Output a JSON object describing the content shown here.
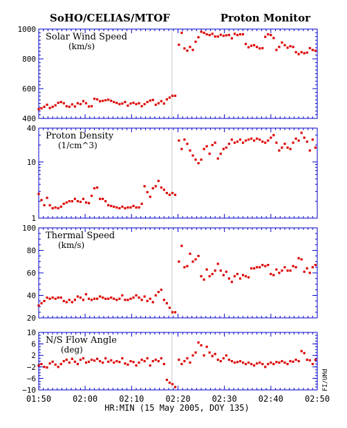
{
  "header": {
    "left_title": "SoHO/CELIAS/MTOF",
    "right_title": "Proton Monitor"
  },
  "credit": "FI/UMd",
  "x_axis": {
    "label": "HR:MIN (15 May 2005, DOY 135)",
    "tick_labels": [
      "01:50",
      "02:00",
      "02:10",
      "02:20",
      "02:30",
      "02:40",
      "02:50"
    ]
  },
  "colors": {
    "axis": "#0000cc",
    "points": "#dd0000",
    "gap_line": "#c8c8c8"
  },
  "chart_data": [
    {
      "type": "scatter",
      "title": "Solar Wind Speed",
      "ylabel": "(km/s)",
      "scale": "linear",
      "xlim": [
        0,
        60
      ],
      "ylim": [
        400,
        1000
      ],
      "yticks": [
        400,
        600,
        800,
        1000
      ],
      "x": [
        0,
        0.6,
        1.2,
        1.8,
        2.4,
        3.0,
        3.6,
        4.2,
        4.8,
        5.4,
        6.0,
        6.6,
        7.2,
        7.8,
        8.4,
        9.0,
        9.6,
        10.2,
        10.8,
        11.4,
        12.0,
        12.6,
        13.2,
        13.8,
        14.4,
        15.0,
        15.6,
        16.2,
        16.8,
        17.4,
        18.0,
        18.6,
        19.2,
        19.8,
        20.4,
        21.0,
        21.6,
        22.2,
        22.8,
        23.4,
        24.0,
        24.6,
        25.2,
        25.8,
        26.4,
        27.0,
        27.6,
        28.2,
        28.8,
        29.4,
        30.2,
        30.8,
        31.4,
        32.0,
        32.6,
        33.2,
        33.8,
        34.4,
        35.0,
        35.6,
        36.2,
        36.8,
        37.4,
        38.0,
        38.6,
        39.2,
        39.8,
        40.4,
        41.0,
        41.6,
        42.2,
        42.8,
        43.4,
        44.0,
        44.6,
        45.2,
        45.8,
        46.4,
        47.0,
        47.6,
        48.2,
        48.8,
        49.4,
        50.0,
        50.6,
        51.2,
        51.8,
        52.4,
        53.0,
        53.6,
        54.2,
        54.8,
        55.4,
        56.0,
        56.6,
        57.2,
        57.8,
        58.4,
        59.0,
        59.6
      ],
      "y": [
        462,
        468,
        478,
        492,
        470,
        478,
        488,
        505,
        510,
        502,
        482,
        478,
        494,
        480,
        502,
        496,
        516,
        502,
        480,
        482,
        532,
        528,
        516,
        518,
        522,
        526,
        518,
        510,
        504,
        496,
        500,
        510,
        486,
        500,
        505,
        496,
        502,
        482,
        496,
        510,
        520,
        524,
        492,
        502,
        516,
        500,
        528,
        540,
        552,
        552,
        895,
        975,
        870,
        855,
        880,
        860,
        915,
        945,
        982,
        975,
        965,
        960,
        968,
        950,
        950,
        962,
        955,
        958,
        960,
        938,
        968,
        960,
        965,
        965,
        900,
        878,
        888,
        892,
        880,
        870,
        872,
        948,
        965,
        960,
        940,
        860,
        880,
        910,
        892,
        875,
        885,
        880,
        845,
        832,
        845,
        838,
        842,
        872,
        860,
        855
      ]
    },
    {
      "type": "scatter",
      "title": "Proton Density",
      "ylabel": "(1/cm^3)",
      "scale": "log",
      "xlim": [
        0,
        60
      ],
      "ylim": [
        1,
        40
      ],
      "yticks": [
        1,
        10,
        40
      ],
      "x": [
        0,
        0.6,
        1.2,
        1.8,
        2.4,
        3.0,
        3.6,
        4.2,
        4.8,
        5.4,
        6.0,
        6.6,
        7.2,
        7.8,
        8.4,
        9.0,
        9.6,
        10.2,
        10.8,
        11.4,
        12.0,
        12.6,
        13.2,
        13.8,
        14.4,
        15.0,
        15.6,
        16.2,
        16.8,
        17.4,
        18.0,
        18.6,
        19.2,
        19.8,
        20.4,
        21.0,
        21.6,
        22.2,
        22.8,
        23.4,
        24.0,
        24.6,
        25.2,
        25.8,
        26.4,
        27.0,
        27.6,
        28.2,
        28.8,
        29.4,
        30.2,
        30.8,
        31.4,
        32.0,
        32.6,
        33.2,
        33.8,
        34.4,
        35.0,
        35.6,
        36.2,
        36.8,
        37.4,
        38.0,
        38.6,
        39.2,
        39.8,
        40.4,
        41.0,
        41.6,
        42.2,
        42.8,
        43.4,
        44.0,
        44.6,
        45.2,
        45.8,
        46.4,
        47.0,
        47.6,
        48.2,
        48.8,
        49.4,
        50.0,
        50.6,
        51.2,
        51.8,
        52.4,
        53.0,
        53.6,
        54.2,
        54.8,
        55.4,
        56.0,
        56.6,
        57.2,
        57.8,
        58.4,
        59.0,
        59.6
      ],
      "y": [
        2.7,
        2.1,
        1.7,
        2.3,
        1.7,
        1.5,
        1.55,
        1.5,
        1.6,
        1.8,
        1.9,
        2.0,
        2.0,
        2.2,
        2.0,
        1.95,
        2.2,
        1.9,
        1.85,
        2.5,
        3.4,
        3.5,
        2.2,
        2.2,
        2.0,
        1.7,
        1.65,
        1.6,
        1.55,
        1.5,
        1.6,
        1.5,
        1.55,
        1.55,
        1.65,
        1.55,
        1.55,
        1.8,
        3.7,
        2.9,
        2.4,
        3.4,
        3.7,
        4.6,
        3.5,
        3.2,
        2.8,
        2.6,
        2.8,
        2.6,
        24,
        17,
        25,
        21,
        16,
        13,
        11,
        9.5,
        11,
        17,
        19,
        14,
        20,
        22,
        11.5,
        14,
        17,
        18,
        21,
        25,
        22,
        23,
        25,
        22,
        24,
        25,
        26,
        24,
        26,
        25,
        23,
        22,
        24,
        27,
        30,
        22,
        16,
        18,
        21,
        18,
        17,
        22,
        26,
        24,
        33,
        27,
        23,
        16,
        25,
        18
      ]
    },
    {
      "type": "scatter",
      "title": "Thermal Speed",
      "ylabel": "(km/s)",
      "scale": "linear",
      "xlim": [
        0,
        60
      ],
      "ylim": [
        20,
        100
      ],
      "yticks": [
        20,
        40,
        60,
        80,
        100
      ],
      "x": [
        0,
        0.6,
        1.2,
        1.8,
        2.4,
        3.0,
        3.6,
        4.2,
        4.8,
        5.4,
        6.0,
        6.6,
        7.2,
        7.8,
        8.4,
        9.0,
        9.6,
        10.2,
        10.8,
        11.4,
        12.0,
        12.6,
        13.2,
        13.8,
        14.4,
        15.0,
        15.6,
        16.2,
        16.8,
        17.4,
        18.0,
        18.6,
        19.2,
        19.8,
        20.4,
        21.0,
        21.6,
        22.2,
        22.8,
        23.4,
        24.0,
        24.6,
        25.2,
        25.8,
        26.4,
        27.0,
        27.6,
        28.2,
        28.8,
        29.4,
        30.2,
        30.8,
        31.4,
        32.0,
        32.6,
        33.2,
        33.8,
        34.4,
        35.0,
        35.6,
        36.2,
        36.8,
        37.4,
        38.0,
        38.6,
        39.2,
        39.8,
        40.4,
        41.0,
        41.6,
        42.2,
        42.8,
        43.4,
        44.0,
        44.6,
        45.2,
        45.8,
        46.4,
        47.0,
        47.6,
        48.2,
        48.8,
        49.4,
        50.0,
        50.6,
        51.2,
        51.8,
        52.4,
        53.0,
        53.6,
        54.2,
        54.8,
        55.4,
        56.0,
        56.6,
        57.2,
        57.8,
        58.4,
        59.0,
        59.6
      ],
      "y": [
        31,
        33,
        35,
        38,
        37,
        38,
        37,
        38,
        38,
        35,
        34,
        36,
        34,
        36,
        39,
        38,
        36,
        41,
        37,
        36,
        37,
        37,
        39,
        38,
        37,
        37,
        38,
        37,
        36,
        37,
        40,
        36,
        36,
        37,
        38,
        40,
        38,
        36,
        39,
        35,
        37,
        34,
        40,
        43,
        45,
        36,
        33,
        29,
        25,
        25,
        70,
        84,
        65,
        66,
        77,
        70,
        72,
        75,
        57,
        54,
        63,
        57,
        59,
        62,
        68,
        62,
        58,
        61,
        55,
        52,
        57,
        59,
        55,
        58,
        57,
        56,
        64,
        64,
        65,
        65,
        67,
        66,
        67,
        59,
        58,
        63,
        60,
        62,
        65,
        62,
        62,
        66,
        65,
        73,
        72,
        61,
        64,
        60,
        65,
        67
      ]
    },
    {
      "type": "scatter",
      "title": "N/S Flow Angle",
      "ylabel": "(deg)",
      "scale": "linear",
      "xlim": [
        0,
        60
      ],
      "ylim": [
        -10,
        10
      ],
      "yticks": [
        -10,
        -6,
        -2,
        2,
        6,
        10
      ],
      "x": [
        0,
        0.6,
        1.2,
        1.8,
        2.4,
        3.0,
        3.6,
        4.2,
        4.8,
        5.4,
        6.0,
        6.6,
        7.2,
        7.8,
        8.4,
        9.0,
        9.6,
        10.2,
        10.8,
        11.4,
        12.0,
        12.6,
        13.2,
        13.8,
        14.4,
        15.0,
        15.6,
        16.2,
        16.8,
        17.4,
        18.0,
        18.6,
        19.2,
        19.8,
        20.4,
        21.0,
        21.6,
        22.2,
        22.8,
        23.4,
        24.0,
        24.6,
        25.2,
        25.8,
        26.4,
        27.0,
        27.6,
        28.2,
        28.8,
        29.4,
        30.2,
        30.8,
        31.4,
        32.0,
        32.6,
        33.2,
        33.8,
        34.4,
        35.0,
        35.6,
        36.2,
        36.8,
        37.4,
        38.0,
        38.6,
        39.2,
        39.8,
        40.4,
        41.0,
        41.6,
        42.2,
        42.8,
        43.4,
        44.0,
        44.6,
        45.2,
        45.8,
        46.4,
        47.0,
        47.6,
        48.2,
        48.8,
        49.4,
        50.0,
        50.6,
        51.2,
        51.8,
        52.4,
        53.0,
        53.6,
        54.2,
        54.8,
        55.4,
        56.0,
        56.6,
        57.2,
        57.8,
        58.4,
        59.0,
        59.6
      ],
      "y": [
        -1.5,
        -1.0,
        -2.0,
        -2.2,
        -0.8,
        -0.2,
        -1.2,
        -2.0,
        -1.0,
        0.0,
        0.5,
        -0.5,
        0.8,
        -0.2,
        -1.0,
        0.5,
        1.0,
        -0.5,
        -0.2,
        0.5,
        0.2,
        0.8,
        0.0,
        -0.5,
        1.0,
        -0.2,
        0.3,
        -0.5,
        0.0,
        -0.3,
        1.0,
        -0.8,
        -1.2,
        0.0,
        -0.3,
        -1.5,
        -0.5,
        0.5,
        0.0,
        1.0,
        -1.5,
        0.0,
        0.5,
        0.0,
        1.0,
        -1.0,
        -6.5,
        -7.5,
        -8.0,
        -9.0,
        0.5,
        -1.0,
        0.0,
        1.0,
        -0.5,
        2.0,
        3.0,
        6.5,
        5.5,
        2.0,
        5.0,
        3.0,
        1.8,
        2.5,
        0.5,
        0.0,
        1.0,
        2.0,
        0.5,
        0.0,
        -0.5,
        -0.3,
        0.0,
        -0.5,
        -1.0,
        -0.5,
        -1.0,
        -1.5,
        -0.8,
        -0.5,
        -1.0,
        -2.0,
        -1.0,
        -0.5,
        -1.0,
        -0.3,
        -0.5,
        0.0,
        -0.5,
        -1.0,
        0.0,
        -0.2,
        0.5,
        0.0,
        3.5,
        2.8,
        0.5,
        0.3,
        -1.0,
        0.5
      ]
    }
  ]
}
